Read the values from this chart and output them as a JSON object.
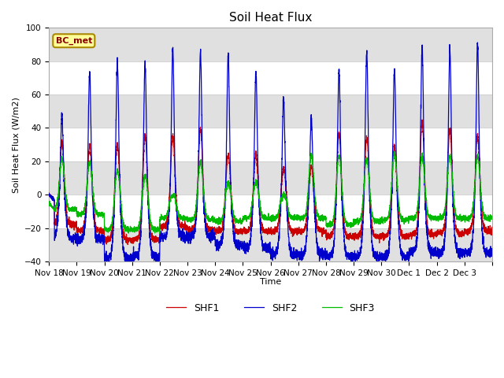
{
  "title": "Soil Heat Flux",
  "ylabel": "Soil Heat Flux (W/m2)",
  "xlabel": "Time",
  "ylim": [
    -40,
    100
  ],
  "fig_bg_color": "#ffffff",
  "plot_bg_color": "#ffffff",
  "band_color": "#e0e0e0",
  "shf1_color": "#cc0000",
  "shf2_color": "#0000cc",
  "shf3_color": "#00bb00",
  "legend_label1": "SHF1",
  "legend_label2": "SHF2",
  "legend_label3": "SHF3",
  "annotation_text": "BC_met",
  "annotation_bg": "#ffff99",
  "annotation_border": "#aa8800",
  "yticks": [
    -40,
    -20,
    0,
    20,
    40,
    60,
    80,
    100
  ],
  "num_days": 16,
  "start_day": 18,
  "points_per_day": 288,
  "shf2_peaks": [
    48,
    74,
    81,
    80,
    89,
    86,
    85,
    75,
    58,
    46,
    76,
    87,
    77,
    89,
    89,
    91
  ],
  "shf1_peaks": [
    32,
    30,
    31,
    36,
    35,
    40,
    25,
    25,
    17,
    18,
    37,
    35,
    30,
    44,
    40,
    36
  ],
  "shf3_peaks": [
    22,
    20,
    15,
    12,
    0,
    20,
    8,
    8,
    0,
    24,
    24,
    22,
    25,
    24,
    24,
    23
  ],
  "shf2_base": [
    -26,
    -27,
    -38,
    -37,
    -25,
    -25,
    -30,
    -32,
    -36,
    -36,
    -37,
    -37,
    -37,
    -34,
    -35,
    -35
  ],
  "shf1_base": [
    -18,
    -22,
    -27,
    -27,
    -19,
    -21,
    -22,
    -22,
    -22,
    -22,
    -25,
    -25,
    -25,
    -24,
    -23,
    -22
  ],
  "shf3_base": [
    -9,
    -12,
    -21,
    -21,
    -14,
    -15,
    -16,
    -14,
    -14,
    -14,
    -18,
    -16,
    -15,
    -14,
    -14,
    -14
  ]
}
